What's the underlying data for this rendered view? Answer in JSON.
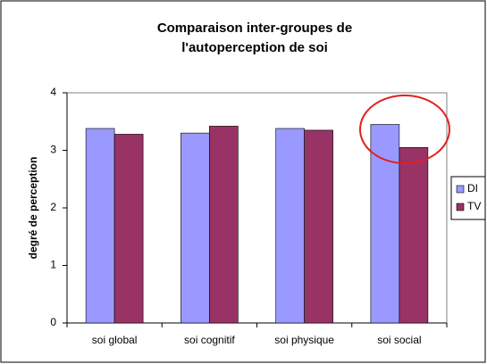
{
  "chart_data": {
    "type": "bar",
    "title": [
      "Comparaison inter-groupes de",
      "l'autoperception de soi"
    ],
    "y_label": "degré de perception",
    "categories": [
      "soi global",
      "soi cognitif",
      "soi physique",
      "soi social"
    ],
    "series": [
      {
        "name": "DI",
        "color": "#9999ff",
        "values": [
          3.38,
          3.3,
          3.38,
          3.45
        ]
      },
      {
        "name": "TV",
        "color": "#993366",
        "values": [
          3.28,
          3.42,
          3.35,
          3.05
        ]
      }
    ],
    "ylim": [
      0,
      4
    ],
    "yticks": [
      0,
      1,
      2,
      3,
      4
    ],
    "grid": false,
    "legend": "right"
  }
}
